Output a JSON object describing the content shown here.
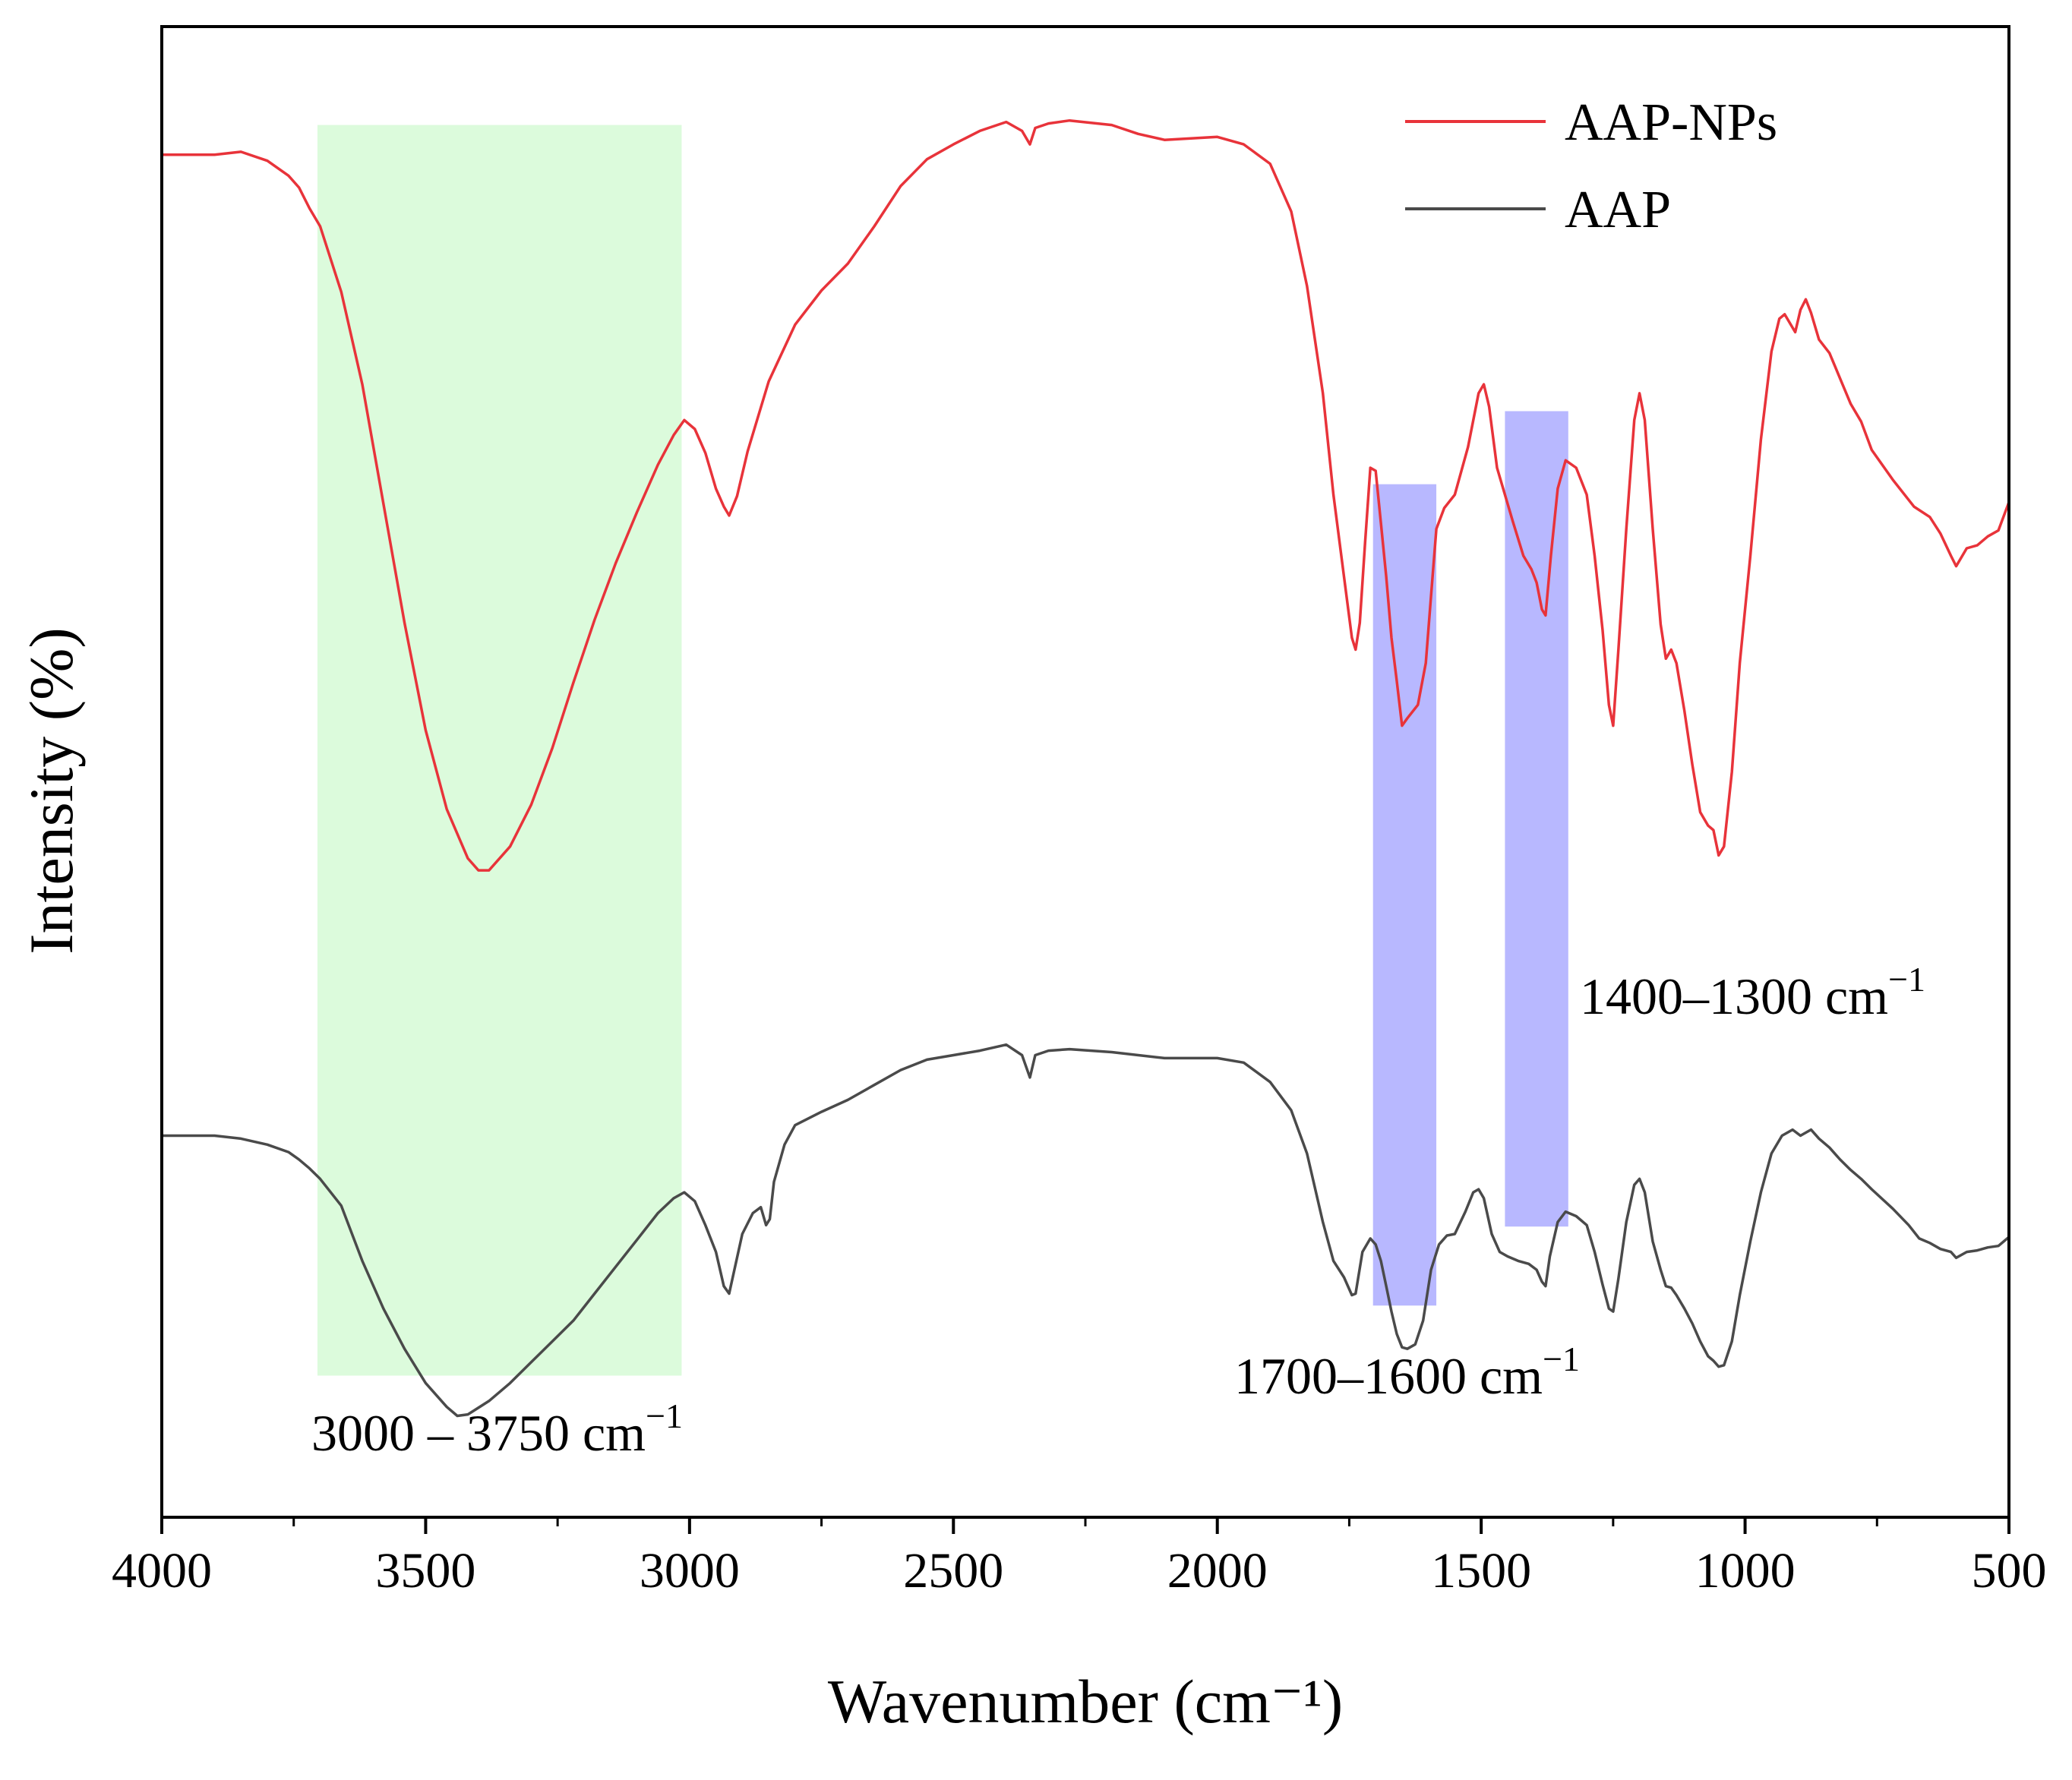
{
  "chart_data": {
    "type": "line",
    "title": "",
    "xlabel": "Wavenumber (cm⁻¹)",
    "ylabel": "Intensity (%)",
    "xlim": [
      4000,
      500
    ],
    "ylim": [
      0,
      100
    ],
    "x_reversed": true,
    "xticks": [
      "4000",
      "3500",
      "3000",
      "2500",
      "2000",
      "1500",
      "1000",
      "500"
    ],
    "yticks": [],
    "grid": false,
    "legend_position": "top-right",
    "series": [
      {
        "name": "AAP-NPs",
        "color": "#e8333a",
        "points": [
          [
            4000,
            91.4
          ],
          [
            3900,
            91.4
          ],
          [
            3850,
            91.6
          ],
          [
            3800,
            91.0
          ],
          [
            3760,
            90.0
          ],
          [
            3740,
            89.2
          ],
          [
            3720,
            87.8
          ],
          [
            3700,
            86.6
          ],
          [
            3660,
            82.2
          ],
          [
            3620,
            76.0
          ],
          [
            3580,
            68.0
          ],
          [
            3540,
            60.0
          ],
          [
            3500,
            52.8
          ],
          [
            3460,
            47.5
          ],
          [
            3420,
            44.2
          ],
          [
            3400,
            43.4
          ],
          [
            3380,
            43.4
          ],
          [
            3340,
            45.0
          ],
          [
            3300,
            47.8
          ],
          [
            3260,
            51.6
          ],
          [
            3220,
            56.0
          ],
          [
            3180,
            60.2
          ],
          [
            3140,
            64.0
          ],
          [
            3100,
            67.4
          ],
          [
            3060,
            70.6
          ],
          [
            3030,
            72.6
          ],
          [
            3010,
            73.6
          ],
          [
            2990,
            73.0
          ],
          [
            2970,
            71.4
          ],
          [
            2950,
            69.0
          ],
          [
            2935,
            67.8
          ],
          [
            2925,
            67.2
          ],
          [
            2910,
            68.5
          ],
          [
            2890,
            71.5
          ],
          [
            2850,
            76.2
          ],
          [
            2800,
            80.0
          ],
          [
            2750,
            82.3
          ],
          [
            2700,
            84.1
          ],
          [
            2650,
            86.6
          ],
          [
            2600,
            89.3
          ],
          [
            2550,
            91.1
          ],
          [
            2500,
            92.1
          ],
          [
            2450,
            93.0
          ],
          [
            2400,
            93.6
          ],
          [
            2370,
            93.0
          ],
          [
            2355,
            92.1
          ],
          [
            2345,
            93.2
          ],
          [
            2320,
            93.5
          ],
          [
            2280,
            93.7
          ],
          [
            2200,
            93.4
          ],
          [
            2150,
            92.8
          ],
          [
            2100,
            92.4
          ],
          [
            2000,
            92.6
          ],
          [
            1950,
            92.1
          ],
          [
            1900,
            90.8
          ],
          [
            1860,
            87.6
          ],
          [
            1830,
            82.6
          ],
          [
            1800,
            75.4
          ],
          [
            1780,
            68.6
          ],
          [
            1760,
            63.1
          ],
          [
            1745,
            59.0
          ],
          [
            1738,
            58.2
          ],
          [
            1730,
            60.0
          ],
          [
            1720,
            65.4
          ],
          [
            1710,
            70.4
          ],
          [
            1700,
            70.2
          ],
          [
            1690,
            66.7
          ],
          [
            1680,
            63.1
          ],
          [
            1670,
            59.0
          ],
          [
            1660,
            56.1
          ],
          [
            1650,
            53.1
          ],
          [
            1640,
            53.6
          ],
          [
            1620,
            54.5
          ],
          [
            1605,
            57.3
          ],
          [
            1595,
            61.8
          ],
          [
            1585,
            66.3
          ],
          [
            1570,
            67.7
          ],
          [
            1550,
            68.6
          ],
          [
            1525,
            71.8
          ],
          [
            1505,
            75.4
          ],
          [
            1495,
            76.0
          ],
          [
            1485,
            74.5
          ],
          [
            1470,
            70.4
          ],
          [
            1455,
            68.6
          ],
          [
            1440,
            66.8
          ],
          [
            1420,
            64.5
          ],
          [
            1405,
            63.6
          ],
          [
            1395,
            62.7
          ],
          [
            1385,
            60.9
          ],
          [
            1378,
            60.5
          ],
          [
            1368,
            64.5
          ],
          [
            1355,
            69.0
          ],
          [
            1340,
            70.9
          ],
          [
            1320,
            70.4
          ],
          [
            1300,
            68.6
          ],
          [
            1285,
            64.5
          ],
          [
            1270,
            59.5
          ],
          [
            1258,
            54.5
          ],
          [
            1250,
            53.1
          ],
          [
            1240,
            58.2
          ],
          [
            1225,
            66.3
          ],
          [
            1210,
            73.6
          ],
          [
            1200,
            75.4
          ],
          [
            1190,
            73.6
          ],
          [
            1175,
            66.3
          ],
          [
            1160,
            59.9
          ],
          [
            1150,
            57.6
          ],
          [
            1140,
            58.2
          ],
          [
            1130,
            57.3
          ],
          [
            1115,
            54.1
          ],
          [
            1100,
            50.5
          ],
          [
            1085,
            47.3
          ],
          [
            1070,
            46.4
          ],
          [
            1060,
            46.1
          ],
          [
            1050,
            44.4
          ],
          [
            1040,
            45.0
          ],
          [
            1025,
            50.0
          ],
          [
            1010,
            57.3
          ],
          [
            990,
            64.5
          ],
          [
            970,
            72.3
          ],
          [
            950,
            78.2
          ],
          [
            935,
            80.4
          ],
          [
            925,
            80.7
          ],
          [
            905,
            79.5
          ],
          [
            895,
            81.0
          ],
          [
            885,
            81.7
          ],
          [
            875,
            80.8
          ],
          [
            860,
            79.0
          ],
          [
            840,
            78.1
          ],
          [
            820,
            76.4
          ],
          [
            800,
            74.7
          ],
          [
            780,
            73.5
          ],
          [
            760,
            71.6
          ],
          [
            720,
            69.6
          ],
          [
            680,
            67.8
          ],
          [
            650,
            67.1
          ],
          [
            630,
            66.0
          ],
          [
            610,
            64.5
          ],
          [
            600,
            63.8
          ],
          [
            580,
            65.0
          ],
          [
            560,
            65.2
          ],
          [
            540,
            65.8
          ],
          [
            520,
            66.2
          ],
          [
            500,
            68.1
          ]
        ]
      },
      {
        "name": "AAP",
        "color": "#4a4a4a",
        "points": [
          [
            4000,
            25.6
          ],
          [
            3900,
            25.6
          ],
          [
            3850,
            25.4
          ],
          [
            3800,
            25.0
          ],
          [
            3760,
            24.5
          ],
          [
            3740,
            24.0
          ],
          [
            3720,
            23.4
          ],
          [
            3700,
            22.7
          ],
          [
            3660,
            20.9
          ],
          [
            3620,
            17.2
          ],
          [
            3580,
            14.0
          ],
          [
            3540,
            11.3
          ],
          [
            3500,
            9.0
          ],
          [
            3460,
            7.4
          ],
          [
            3440,
            6.8
          ],
          [
            3420,
            6.9
          ],
          [
            3380,
            7.8
          ],
          [
            3340,
            9.0
          ],
          [
            3300,
            10.4
          ],
          [
            3260,
            11.8
          ],
          [
            3220,
            13.2
          ],
          [
            3180,
            15.0
          ],
          [
            3140,
            16.8
          ],
          [
            3100,
            18.6
          ],
          [
            3060,
            20.4
          ],
          [
            3030,
            21.4
          ],
          [
            3010,
            21.8
          ],
          [
            2990,
            21.2
          ],
          [
            2970,
            19.6
          ],
          [
            2950,
            17.8
          ],
          [
            2935,
            15.5
          ],
          [
            2925,
            15.0
          ],
          [
            2915,
            16.6
          ],
          [
            2900,
            19.0
          ],
          [
            2880,
            20.4
          ],
          [
            2865,
            20.8
          ],
          [
            2855,
            19.6
          ],
          [
            2848,
            20.0
          ],
          [
            2840,
            22.5
          ],
          [
            2820,
            25.0
          ],
          [
            2800,
            26.3
          ],
          [
            2750,
            27.2
          ],
          [
            2700,
            28.0
          ],
          [
            2650,
            29.0
          ],
          [
            2600,
            30.0
          ],
          [
            2550,
            30.7
          ],
          [
            2500,
            31.0
          ],
          [
            2450,
            31.3
          ],
          [
            2400,
            31.7
          ],
          [
            2370,
            31.0
          ],
          [
            2355,
            29.5
          ],
          [
            2345,
            31.0
          ],
          [
            2320,
            31.3
          ],
          [
            2280,
            31.4
          ],
          [
            2200,
            31.2
          ],
          [
            2100,
            30.8
          ],
          [
            2000,
            30.8
          ],
          [
            1950,
            30.5
          ],
          [
            1900,
            29.2
          ],
          [
            1860,
            27.3
          ],
          [
            1830,
            24.4
          ],
          [
            1800,
            19.8
          ],
          [
            1780,
            17.2
          ],
          [
            1760,
            16.1
          ],
          [
            1745,
            14.9
          ],
          [
            1738,
            15.0
          ],
          [
            1725,
            17.8
          ],
          [
            1710,
            18.7
          ],
          [
            1700,
            18.3
          ],
          [
            1690,
            17.2
          ],
          [
            1680,
            15.5
          ],
          [
            1670,
            13.8
          ],
          [
            1660,
            12.3
          ],
          [
            1650,
            11.4
          ],
          [
            1640,
            11.3
          ],
          [
            1625,
            11.6
          ],
          [
            1610,
            13.2
          ],
          [
            1595,
            16.6
          ],
          [
            1580,
            18.3
          ],
          [
            1565,
            18.9
          ],
          [
            1550,
            19.0
          ],
          [
            1530,
            20.5
          ],
          [
            1515,
            21.8
          ],
          [
            1505,
            22.0
          ],
          [
            1495,
            21.4
          ],
          [
            1480,
            19.0
          ],
          [
            1465,
            17.8
          ],
          [
            1450,
            17.5
          ],
          [
            1430,
            17.2
          ],
          [
            1410,
            17.0
          ],
          [
            1395,
            16.6
          ],
          [
            1385,
            15.8
          ],
          [
            1378,
            15.5
          ],
          [
            1370,
            17.5
          ],
          [
            1355,
            19.8
          ],
          [
            1340,
            20.5
          ],
          [
            1320,
            20.2
          ],
          [
            1300,
            19.6
          ],
          [
            1285,
            17.8
          ],
          [
            1270,
            15.6
          ],
          [
            1258,
            14.0
          ],
          [
            1250,
            13.8
          ],
          [
            1240,
            16.0
          ],
          [
            1225,
            19.8
          ],
          [
            1210,
            22.3
          ],
          [
            1200,
            22.7
          ],
          [
            1190,
            21.8
          ],
          [
            1175,
            18.5
          ],
          [
            1160,
            16.6
          ],
          [
            1150,
            15.5
          ],
          [
            1140,
            15.4
          ],
          [
            1130,
            14.9
          ],
          [
            1115,
            14.0
          ],
          [
            1100,
            13.0
          ],
          [
            1085,
            11.8
          ],
          [
            1070,
            10.8
          ],
          [
            1060,
            10.5
          ],
          [
            1050,
            10.1
          ],
          [
            1040,
            10.2
          ],
          [
            1025,
            11.8
          ],
          [
            1010,
            14.9
          ],
          [
            990,
            18.5
          ],
          [
            970,
            21.8
          ],
          [
            950,
            24.4
          ],
          [
            930,
            25.6
          ],
          [
            910,
            26.0
          ],
          [
            895,
            25.6
          ],
          [
            885,
            25.8
          ],
          [
            875,
            26.0
          ],
          [
            860,
            25.4
          ],
          [
            840,
            24.8
          ],
          [
            820,
            24.0
          ],
          [
            800,
            23.3
          ],
          [
            780,
            22.7
          ],
          [
            760,
            22.0
          ],
          [
            720,
            20.7
          ],
          [
            690,
            19.6
          ],
          [
            670,
            18.7
          ],
          [
            650,
            18.4
          ],
          [
            630,
            18.0
          ],
          [
            610,
            17.8
          ],
          [
            600,
            17.4
          ],
          [
            580,
            17.8
          ],
          [
            560,
            17.9
          ],
          [
            540,
            18.1
          ],
          [
            520,
            18.2
          ],
          [
            500,
            18.8
          ]
        ]
      }
    ],
    "highlight_regions": [
      {
        "x_from": 3705,
        "x_to": 3015,
        "y_from": 9.5,
        "y_to": 93.4,
        "color": "#dcfbdc"
      },
      {
        "x_from": 1705,
        "x_to": 1585,
        "y_from": 14.2,
        "y_to": 69.3,
        "color": "#b8b8ff"
      },
      {
        "x_from": 1455,
        "x_to": 1335,
        "y_from": 19.5,
        "y_to": 74.2,
        "color": "#b8b8ff"
      }
    ],
    "annotations": [
      {
        "text": "3000 – 3750 cm",
        "superscript": "−1"
      },
      {
        "text": "1700–1600 cm",
        "superscript": "−1"
      },
      {
        "text": "1400–1300 cm",
        "superscript": "−1"
      }
    ]
  }
}
